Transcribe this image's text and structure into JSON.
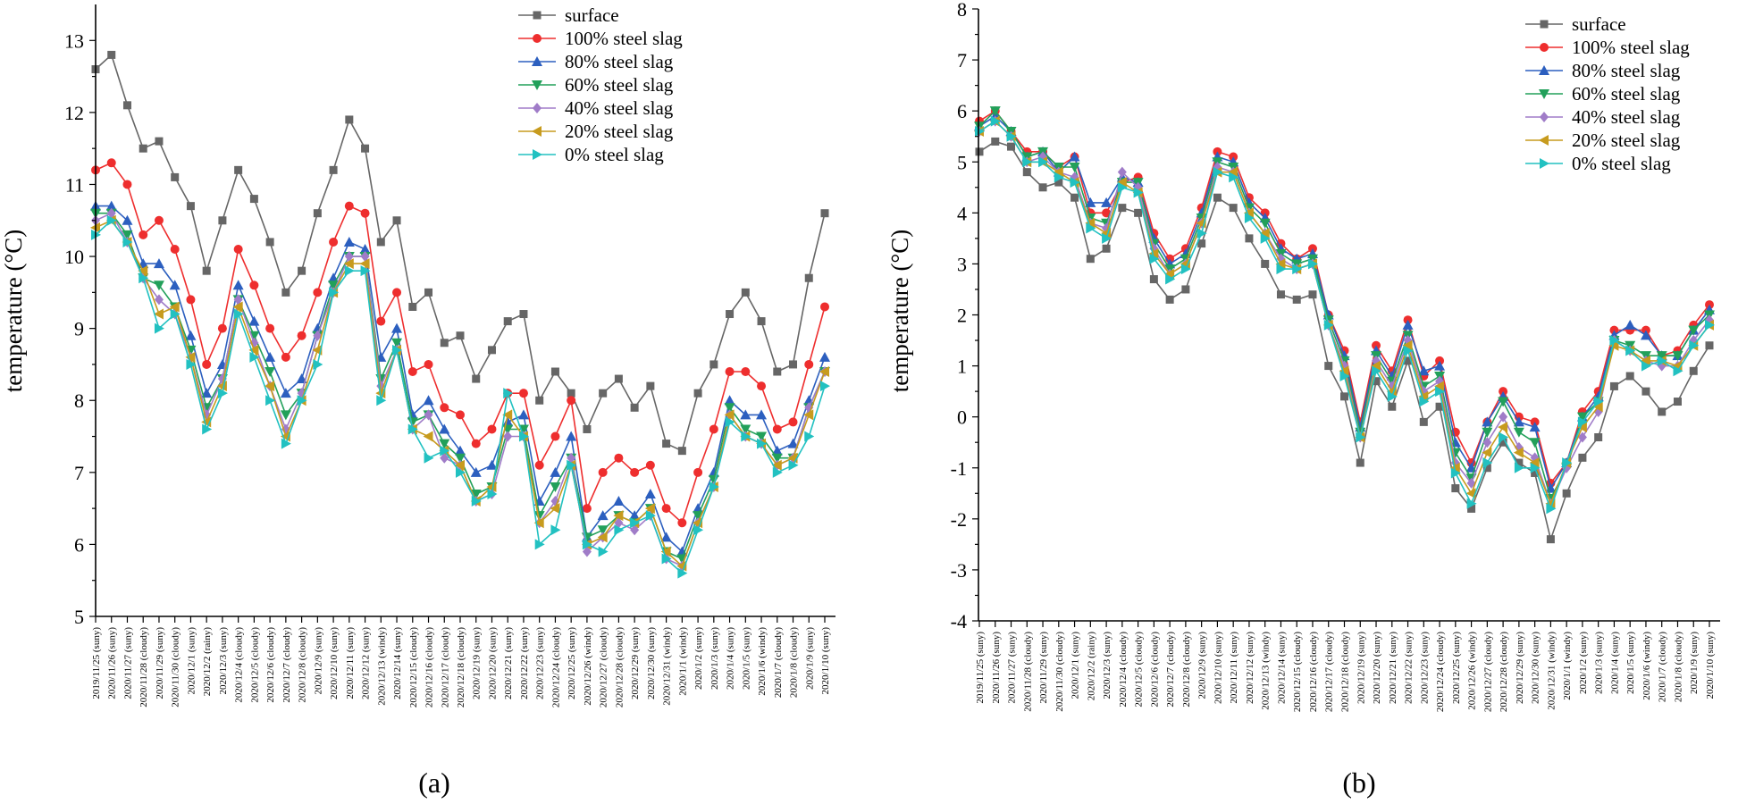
{
  "chart_data": [
    {
      "type": "line",
      "panel_label": "(a)",
      "ylabel": "temperature (°C)",
      "xlabel": "",
      "ylim": [
        5,
        13.5
      ],
      "yticks": [
        5,
        6,
        7,
        8,
        9,
        10,
        11,
        12,
        13
      ],
      "legend_position": "top-right",
      "categories": [
        "2019/11/25 (suny)",
        "2020/11/26 (suny)",
        "2020/11/27 (suny)",
        "2020/11/28 (cloudy)",
        "2020/11/29 (suny)",
        "2020/11/30 (cloudy)",
        "2020/12/1 (suny)",
        "2020/12/2 (rainy)",
        "2020/12/3 (suny)",
        "2020/12/4 (cloudy)",
        "2020/12/5 (cloudy)",
        "2020/12/6 (cloudy)",
        "2020/12/7 (cloudy)",
        "2020/12/8 (cloudy)",
        "2020/12/9 (suny)",
        "2020/12/10 (suny)",
        "2020/12/11 (suny)",
        "2020/12/12 (suny)",
        "2020/12/13 (windy)",
        "2020/12/14 (suny)",
        "2020/12/15 (cloudy)",
        "2020/12/16 (cloudy)",
        "2020/12/17 (cloudy)",
        "2020/12/18 (cloudy)",
        "2020/12/19 (suny)",
        "2020/12/20 (suny)",
        "2020/12/21 (suny)",
        "2020/12/22 (suny)",
        "2020/12/23 (suny)",
        "2020/12/24 (cloudy)",
        "2020/12/25 (suny)",
        "2020/12/26 (windy)",
        "2020/12/27 (cloudy)",
        "2020/12/28 (cloudy)",
        "2020/12/29 (suny)",
        "2020/12/30 (suny)",
        "2020/12/31 (windy)",
        "2020/1/1 (windy)",
        "2020/1/2 (suny)",
        "2020/1/3 (suny)",
        "2020/1/4 (suny)",
        "2020/1/5 (suny)",
        "2020/1/6 (windy)",
        "2020/1/7 (cloudy)",
        "2020/1/8 (cloudy)",
        "2020/1/9 (suny)",
        "2020/1/10 (suny)"
      ],
      "series": [
        {
          "name": "surface",
          "color": "#666666",
          "marker": "square",
          "values": [
            12.6,
            12.8,
            12.1,
            11.5,
            11.6,
            11.1,
            10.7,
            9.8,
            10.5,
            11.2,
            10.8,
            10.2,
            9.5,
            9.8,
            10.6,
            11.2,
            11.9,
            11.5,
            10.2,
            10.5,
            9.3,
            9.5,
            8.8,
            8.9,
            8.3,
            8.7,
            9.1,
            9.2,
            8.0,
            8.4,
            8.1,
            7.6,
            8.1,
            8.3,
            7.9,
            8.2,
            7.4,
            7.3,
            8.1,
            8.5,
            9.2,
            9.5,
            9.1,
            8.4,
            8.5,
            9.7,
            10.6
          ]
        },
        {
          "name": "100% steel slag",
          "color": "#ee2e2e",
          "marker": "circle",
          "values": [
            11.2,
            11.3,
            11.0,
            10.3,
            10.5,
            10.1,
            9.4,
            8.5,
            9.0,
            10.1,
            9.6,
            9.0,
            8.6,
            8.9,
            9.5,
            10.2,
            10.7,
            10.6,
            9.1,
            9.5,
            8.4,
            8.5,
            7.9,
            7.8,
            7.4,
            7.6,
            8.1,
            8.1,
            7.1,
            7.5,
            8.0,
            6.5,
            7.0,
            7.2,
            7.0,
            7.1,
            6.5,
            6.3,
            7.0,
            7.6,
            8.4,
            8.4,
            8.2,
            7.6,
            7.7,
            8.5,
            9.3
          ]
        },
        {
          "name": "80% steel slag",
          "color": "#2c5fbf",
          "marker": "triangle-up",
          "values": [
            10.7,
            10.7,
            10.5,
            9.9,
            9.9,
            9.6,
            8.9,
            8.1,
            8.5,
            9.6,
            9.1,
            8.6,
            8.1,
            8.3,
            9.0,
            9.7,
            10.2,
            10.1,
            8.6,
            9.0,
            7.8,
            8.0,
            7.6,
            7.3,
            7.0,
            7.1,
            7.7,
            7.8,
            6.6,
            7.0,
            7.5,
            6.1,
            6.4,
            6.6,
            6.4,
            6.7,
            6.1,
            5.9,
            6.5,
            7.0,
            8.0,
            7.8,
            7.8,
            7.3,
            7.4,
            8.0,
            8.6
          ]
        },
        {
          "name": "60% steel slag",
          "color": "#22a05a",
          "marker": "triangle-down",
          "values": [
            10.6,
            10.6,
            10.3,
            9.7,
            9.6,
            9.3,
            8.7,
            7.9,
            8.3,
            9.4,
            8.9,
            8.4,
            7.8,
            8.1,
            8.9,
            9.6,
            10.0,
            10.0,
            8.3,
            8.8,
            7.7,
            7.8,
            7.4,
            7.2,
            6.7,
            6.8,
            7.6,
            7.6,
            6.4,
            6.8,
            7.2,
            6.1,
            6.2,
            6.4,
            6.3,
            6.5,
            5.9,
            5.8,
            6.4,
            6.9,
            7.9,
            7.6,
            7.5,
            7.2,
            7.2,
            7.9,
            8.4
          ]
        },
        {
          "name": "40% steel slag",
          "color": "#a07cc8",
          "marker": "diamond",
          "values": [
            10.5,
            10.6,
            10.2,
            9.7,
            9.4,
            9.2,
            8.6,
            7.8,
            8.3,
            9.4,
            8.8,
            8.2,
            7.6,
            8.1,
            8.9,
            9.5,
            10.0,
            10.0,
            8.2,
            8.7,
            7.6,
            7.8,
            7.2,
            7.1,
            6.6,
            6.7,
            7.5,
            7.5,
            6.3,
            6.6,
            7.2,
            5.9,
            6.1,
            6.3,
            6.2,
            6.4,
            5.8,
            5.7,
            6.3,
            6.8,
            7.8,
            7.5,
            7.4,
            7.1,
            7.2,
            7.9,
            8.4
          ]
        },
        {
          "name": "20% steel slag",
          "color": "#c79b1e",
          "marker": "triangle-left",
          "values": [
            10.4,
            10.5,
            10.2,
            9.8,
            9.2,
            9.3,
            8.6,
            7.7,
            8.2,
            9.3,
            8.7,
            8.2,
            7.5,
            8.0,
            8.7,
            9.5,
            9.9,
            9.9,
            8.1,
            8.7,
            7.6,
            7.5,
            7.3,
            7.1,
            6.6,
            6.8,
            7.8,
            7.5,
            6.3,
            6.5,
            7.1,
            6.0,
            6.1,
            6.4,
            6.3,
            6.5,
            5.9,
            5.7,
            6.3,
            6.8,
            7.8,
            7.5,
            7.4,
            7.1,
            7.2,
            7.8,
            8.4
          ]
        },
        {
          "name": "0% steel slag",
          "color": "#22c1c1",
          "marker": "triangle-right",
          "values": [
            10.3,
            10.5,
            10.2,
            9.7,
            9.0,
            9.2,
            8.5,
            7.6,
            8.1,
            9.2,
            8.6,
            8.0,
            7.4,
            8.0,
            8.5,
            9.5,
            9.8,
            9.8,
            8.0,
            8.7,
            7.6,
            7.2,
            7.3,
            7.0,
            6.6,
            6.7,
            8.1,
            7.5,
            6.0,
            6.2,
            7.1,
            6.0,
            5.9,
            6.2,
            6.3,
            6.4,
            5.8,
            5.6,
            6.2,
            6.8,
            7.7,
            7.5,
            7.4,
            7.0,
            7.1,
            7.5,
            8.2
          ]
        }
      ]
    },
    {
      "type": "line",
      "panel_label": "(b)",
      "ylabel": "temperature (°C)",
      "xlabel": "",
      "ylim": [
        -4,
        8
      ],
      "yticks": [
        -4,
        -3,
        -2,
        -1,
        0,
        1,
        2,
        3,
        4,
        5,
        6,
        7,
        8
      ],
      "legend_position": "top-right",
      "categories": [
        "2019/11/25 (suny)",
        "2020/11/26 (suny)",
        "2020/11/27 (suny)",
        "2020/11/28 (cloudy)",
        "2020/11/29 (suny)",
        "2020/11/30 (cloudy)",
        "2020/12/1 (suny)",
        "2020/12/2 (rainy)",
        "2020/12/3 (suny)",
        "2020/12/4 (cloudy)",
        "2020/12/5 (cloudy)",
        "2020/12/6 (cloudy)",
        "2020/12/7 (cloudy)",
        "2020/12/8 (cloudy)",
        "2020/12/9 (suny)",
        "2020/12/10 (suny)",
        "2020/12/11 (suny)",
        "2020/12/12 (suny)",
        "2020/12/13 (windy)",
        "2020/12/14 (suny)",
        "2020/12/15 (cloudy)",
        "2020/12/16 (cloudy)",
        "2020/12/17 (cloudy)",
        "2020/12/18 (cloudy)",
        "2020/12/19 (suny)",
        "2020/12/20 (suny)",
        "2020/12/21 (suny)",
        "2020/12/22 (suny)",
        "2020/12/23 (suny)",
        "2020/12/24 (cloudy)",
        "2020/12/25 (suny)",
        "2020/12/26 (windy)",
        "2020/12/27 (cloudy)",
        "2020/12/28 (cloudy)",
        "2020/12/29 (suny)",
        "2020/12/30 (suny)",
        "2020/12/31 (windy)",
        "2020/1/1 (windy)",
        "2020/1/2 (suny)",
        "2020/1/3 (suny)",
        "2020/1/4 (suny)",
        "2020/1/5 (suny)",
        "2020/1/6 (windy)",
        "2020/1/7 (cloudy)",
        "2020/1/8 (cloudy)",
        "2020/1/9 (suny)",
        "2020/1/10 (suny)"
      ],
      "series": [
        {
          "name": "surface",
          "color": "#666666",
          "marker": "square",
          "values": [
            5.2,
            5.4,
            5.3,
            4.8,
            4.5,
            4.6,
            4.3,
            3.1,
            3.3,
            4.1,
            4.0,
            2.7,
            2.3,
            2.5,
            3.4,
            4.3,
            4.1,
            3.5,
            3.0,
            2.4,
            2.3,
            2.4,
            1.0,
            0.4,
            -0.9,
            0.7,
            0.2,
            1.1,
            -0.1,
            0.2,
            -1.4,
            -1.8,
            -1.0,
            -0.5,
            -0.9,
            -1.1,
            -2.4,
            -1.5,
            -0.8,
            -0.4,
            0.6,
            0.8,
            0.5,
            0.1,
            0.3,
            0.9,
            1.4
          ]
        },
        {
          "name": "100% steel slag",
          "color": "#ee2e2e",
          "marker": "circle",
          "values": [
            5.8,
            6.0,
            5.6,
            5.2,
            5.2,
            4.9,
            5.1,
            4.0,
            4.0,
            4.6,
            4.7,
            3.6,
            3.1,
            3.3,
            4.1,
            5.2,
            5.1,
            4.3,
            4.0,
            3.4,
            3.1,
            3.3,
            2.0,
            1.3,
            -0.1,
            1.4,
            0.9,
            1.9,
            0.8,
            1.1,
            -0.3,
            -0.9,
            -0.1,
            0.5,
            0.0,
            -0.1,
            -1.3,
            -0.9,
            0.1,
            0.5,
            1.7,
            1.7,
            1.7,
            1.2,
            1.3,
            1.8,
            2.2
          ]
        },
        {
          "name": "80% steel slag",
          "color": "#2c5fbf",
          "marker": "triangle-up",
          "values": [
            5.7,
            5.9,
            5.6,
            5.1,
            5.2,
            4.8,
            5.1,
            4.2,
            4.2,
            4.7,
            4.6,
            3.5,
            3.0,
            3.2,
            4.0,
            5.1,
            5.0,
            4.2,
            3.9,
            3.3,
            3.1,
            3.2,
            2.0,
            1.2,
            -0.2,
            1.3,
            0.8,
            1.8,
            0.9,
            1.0,
            -0.5,
            -1.0,
            -0.1,
            0.4,
            -0.1,
            -0.2,
            -1.4,
            -0.9,
            0.0,
            0.4,
            1.6,
            1.8,
            1.6,
            1.2,
            1.2,
            1.7,
            2.1
          ]
        },
        {
          "name": "60% steel slag",
          "color": "#22a05a",
          "marker": "triangle-down",
          "values": [
            5.7,
            6.0,
            5.6,
            5.1,
            5.2,
            4.9,
            4.9,
            3.9,
            3.8,
            4.6,
            4.6,
            3.4,
            2.9,
            3.1,
            3.9,
            5.0,
            4.9,
            4.1,
            3.8,
            3.2,
            3.0,
            3.1,
            1.9,
            1.1,
            -0.3,
            1.2,
            0.7,
            1.6,
            0.6,
            0.8,
            -0.7,
            -1.2,
            -0.3,
            0.3,
            -0.3,
            -0.5,
            -1.6,
            -1.0,
            0.0,
            0.3,
            1.5,
            1.4,
            1.2,
            1.2,
            1.2,
            1.7,
            2.0
          ]
        },
        {
          "name": "40% steel slag",
          "color": "#a07cc8",
          "marker": "diamond",
          "values": [
            5.6,
            5.8,
            5.5,
            5.0,
            5.1,
            4.8,
            4.7,
            3.8,
            3.7,
            4.8,
            4.5,
            3.3,
            2.8,
            3.0,
            3.8,
            4.9,
            4.8,
            4.0,
            3.6,
            3.1,
            2.9,
            3.0,
            1.8,
            1.0,
            -0.4,
            1.1,
            0.6,
            1.5,
            0.5,
            0.7,
            -0.9,
            -1.3,
            -0.5,
            0.0,
            -0.6,
            -0.8,
            -1.7,
            -1.0,
            -0.4,
            0.1,
            1.5,
            1.3,
            1.1,
            1.0,
            1.0,
            1.5,
            1.9
          ]
        },
        {
          "name": "20% steel slag",
          "color": "#c79b1e",
          "marker": "triangle-left",
          "values": [
            5.6,
            5.8,
            5.5,
            5.0,
            5.0,
            4.8,
            4.6,
            3.8,
            3.6,
            4.6,
            4.4,
            3.2,
            2.8,
            3.0,
            3.8,
            4.8,
            4.8,
            4.0,
            3.6,
            3.0,
            2.9,
            3.0,
            1.8,
            0.9,
            -0.4,
            1.0,
            0.5,
            1.4,
            0.4,
            0.6,
            -1.0,
            -1.5,
            -0.7,
            -0.2,
            -0.7,
            -0.9,
            -1.7,
            -0.9,
            -0.2,
            0.2,
            1.4,
            1.3,
            1.1,
            1.1,
            1.0,
            1.4,
            1.8
          ]
        },
        {
          "name": "0% steel slag",
          "color": "#22c1c1",
          "marker": "triangle-right",
          "values": [
            5.6,
            5.8,
            5.5,
            5.0,
            5.0,
            4.7,
            4.6,
            3.7,
            3.5,
            4.5,
            4.4,
            3.1,
            2.7,
            2.9,
            3.6,
            4.8,
            4.7,
            3.9,
            3.5,
            2.9,
            2.9,
            3.0,
            1.8,
            0.8,
            -0.4,
            0.9,
            0.4,
            1.3,
            0.3,
            0.5,
            -1.1,
            -1.7,
            -0.9,
            -0.4,
            -1.0,
            -1.0,
            -1.8,
            -0.9,
            -0.1,
            0.3,
            1.5,
            1.3,
            1.0,
            1.1,
            0.9,
            1.4,
            1.8
          ]
        }
      ]
    }
  ]
}
